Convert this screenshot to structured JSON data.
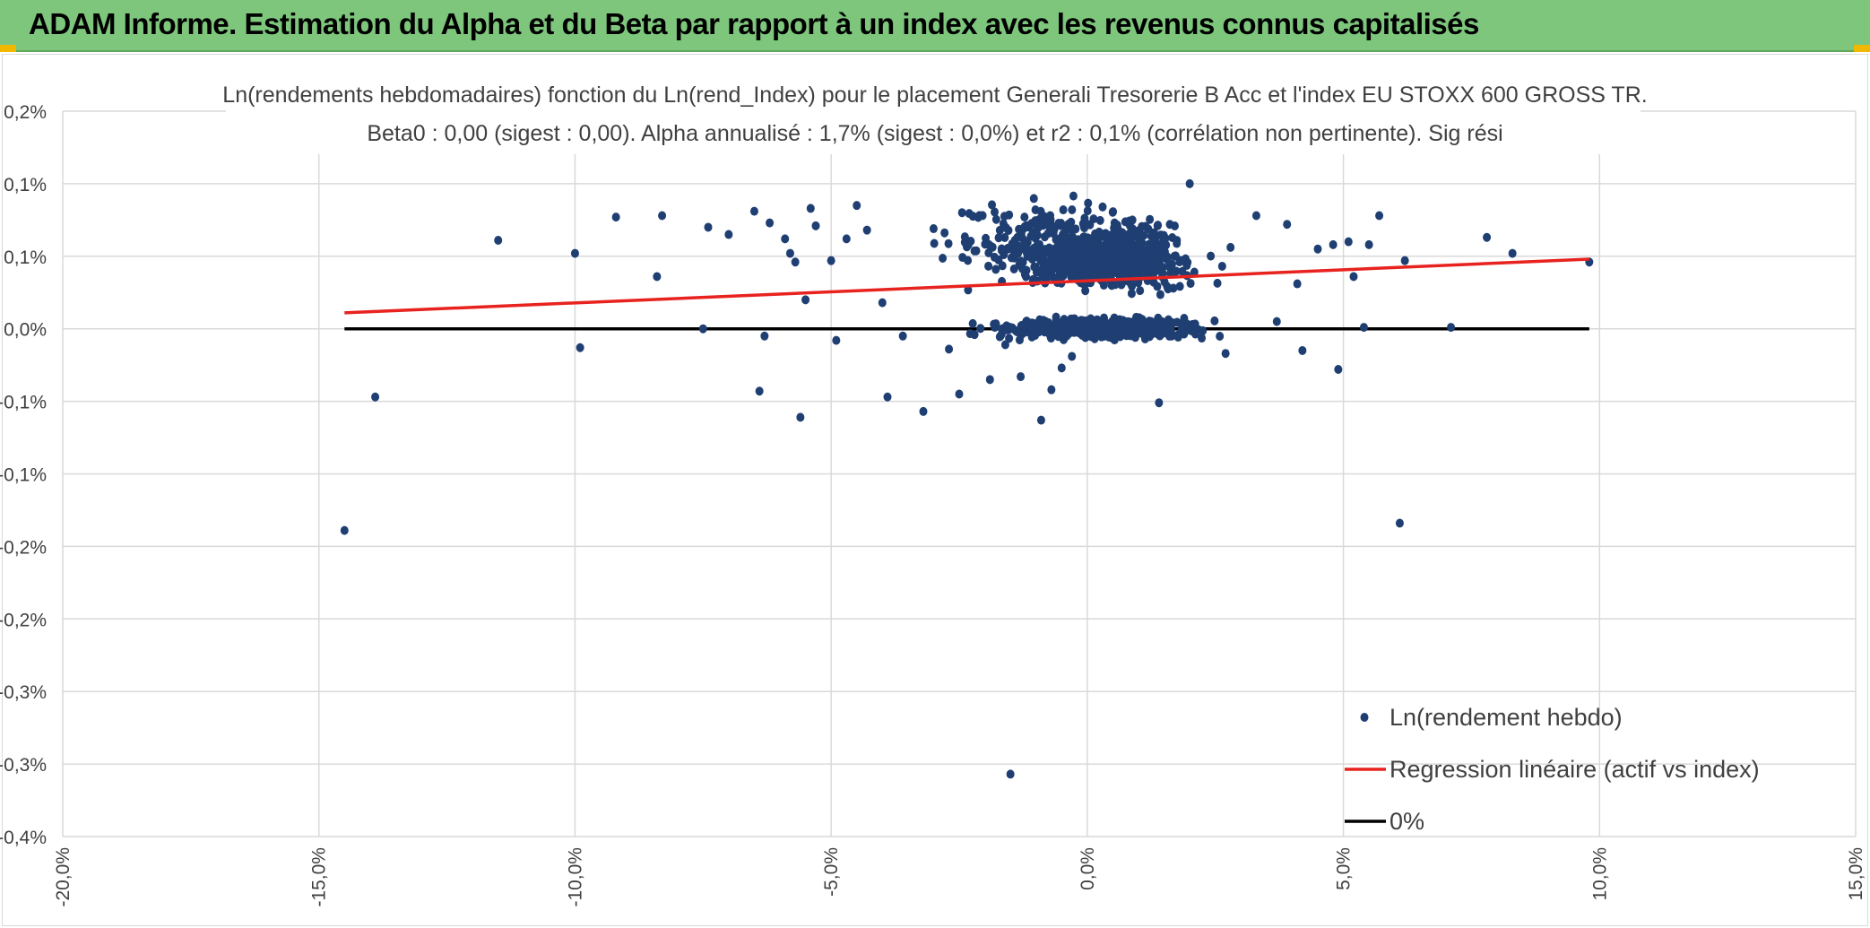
{
  "banner": {
    "title": "ADAM Informe. Estimation du Alpha et du Beta par rapport à un index avec les revenus connus capitalisés"
  },
  "colors": {
    "banner": "#7dc67c",
    "points": "#1f3f73",
    "regression": "#e8231f",
    "zero": "#000000",
    "grid": "#d9d9d9"
  },
  "chart_data": {
    "type": "scatter",
    "title": "Ln(rendements hebdomadaires) fonction du Ln(rend_Index) pour le placement Generali Tresorerie B Acc et l'index EU STOXX 600 GROSS TR.",
    "subtitle": "Beta0 : 0,00 (sigest : 0,00). Alpha annualisé : 1,7% (sigest : 0,0%) et r2 : 0,1% (corrélation non pertinente). Sig rési",
    "x_ticks": [
      "-20,0%",
      "-15,0%",
      "-10,0%",
      "-5,0%",
      "0,0%",
      "5,0%",
      "10,0%",
      "15,0%"
    ],
    "x_tick_values": [
      -20,
      -15,
      -10,
      -5,
      0,
      5,
      10,
      15
    ],
    "y_ticks": [
      "0,2%",
      "0,1%",
      "0,1%",
      "0,0%",
      "-0,1%",
      "-0,1%",
      "-0,2%",
      "-0,2%",
      "-0,3%",
      "-0,3%",
      "-0,4%"
    ],
    "y_tick_values": [
      0.25,
      0.2,
      0.15,
      0.1,
      0.05,
      0.0,
      -0.05,
      -0.1,
      -0.15,
      -0.2,
      -0.25
    ],
    "y_zero_value": 0.1,
    "xlim": [
      -20,
      15
    ],
    "ylim": [
      -0.25,
      0.25
    ],
    "grid": true,
    "legend_position": "bottom-right",
    "series": [
      {
        "name": "Ln(rendement hebdo)",
        "kind": "scatter",
        "points": [
          [
            -14.5,
            -0.039
          ],
          [
            -13.9,
            0.053
          ],
          [
            -11.5,
            0.161
          ],
          [
            -10.0,
            0.152
          ],
          [
            -9.9,
            0.087
          ],
          [
            -9.2,
            0.177
          ],
          [
            -8.4,
            0.136
          ],
          [
            -8.3,
            0.178
          ],
          [
            -7.5,
            0.1
          ],
          [
            -7.4,
            0.17
          ],
          [
            -7.0,
            0.165
          ],
          [
            -6.5,
            0.181
          ],
          [
            -6.4,
            0.057
          ],
          [
            -6.3,
            0.095
          ],
          [
            -6.2,
            0.173
          ],
          [
            -5.9,
            0.162
          ],
          [
            -5.8,
            0.152
          ],
          [
            -5.7,
            0.146
          ],
          [
            -5.6,
            0.039
          ],
          [
            -5.5,
            0.12
          ],
          [
            -5.4,
            0.183
          ],
          [
            -5.3,
            0.171
          ],
          [
            -5.0,
            0.147
          ],
          [
            -4.9,
            0.092
          ],
          [
            -4.7,
            0.162
          ],
          [
            -4.5,
            0.185
          ],
          [
            -4.3,
            0.168
          ],
          [
            -4.0,
            0.118
          ],
          [
            -3.9,
            0.053
          ],
          [
            -3.6,
            0.095
          ],
          [
            -3.2,
            0.043
          ],
          [
            -3.0,
            0.169
          ],
          [
            -2.7,
            0.086
          ],
          [
            -2.5,
            0.055
          ],
          [
            -2.2,
            0.096
          ],
          [
            -1.9,
            0.065
          ],
          [
            -1.6,
            0.089
          ],
          [
            -1.5,
            -0.207
          ],
          [
            -1.3,
            0.067
          ],
          [
            -0.9,
            0.037
          ],
          [
            -0.7,
            0.058
          ],
          [
            -0.5,
            0.073
          ],
          [
            -0.3,
            0.081
          ],
          [
            1.4,
            0.049
          ],
          [
            2.0,
            0.2
          ],
          [
            2.7,
            0.083
          ],
          [
            3.3,
            0.178
          ],
          [
            3.7,
            0.105
          ],
          [
            3.9,
            0.172
          ],
          [
            4.1,
            0.131
          ],
          [
            4.2,
            0.085
          ],
          [
            4.5,
            0.155
          ],
          [
            4.8,
            0.158
          ],
          [
            4.9,
            0.072
          ],
          [
            5.1,
            0.16
          ],
          [
            5.2,
            0.136
          ],
          [
            5.4,
            0.101
          ],
          [
            5.5,
            0.158
          ],
          [
            5.7,
            0.178
          ],
          [
            6.1,
            -0.034
          ],
          [
            6.2,
            0.147
          ],
          [
            7.1,
            0.101
          ],
          [
            7.8,
            0.163
          ],
          [
            8.3,
            0.152
          ],
          [
            9.8,
            0.146
          ]
        ],
        "cluster_note": ""
      },
      {
        "name": "Regression linéaire (actif vs index)",
        "kind": "line",
        "x": [
          -14.5,
          9.8
        ],
        "y": [
          0.111,
          0.148
        ]
      },
      {
        "name": "0%",
        "kind": "line",
        "x": [
          -14.5,
          9.8
        ],
        "y": [
          0.1,
          0.1
        ]
      }
    ]
  }
}
